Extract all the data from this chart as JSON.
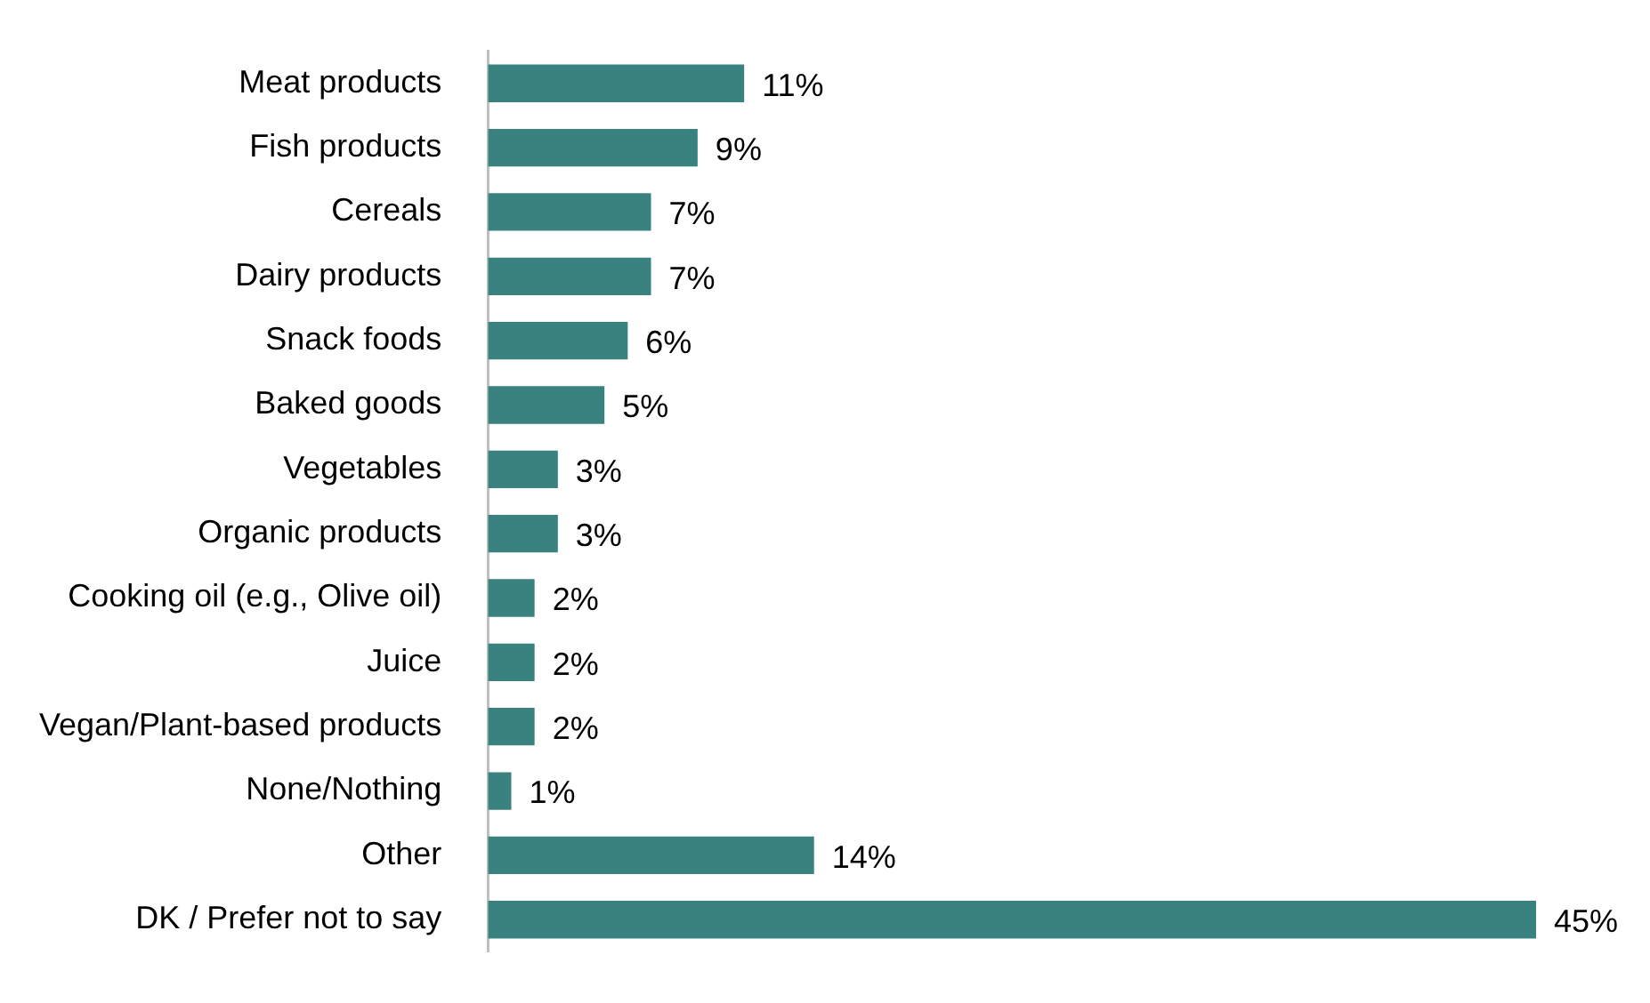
{
  "chart_data": {
    "type": "bar",
    "orientation": "horizontal",
    "categories": [
      "Meat products",
      "Fish products",
      "Cereals",
      "Dairy products",
      "Snack foods",
      "Baked goods",
      "Vegetables",
      "Organic products",
      "Cooking oil (e.g., Olive oil)",
      "Juice",
      "Vegan/Plant-based products",
      "None/Nothing",
      "Other",
      "DK / Prefer not to say"
    ],
    "values": [
      11,
      9,
      7,
      7,
      6,
      5,
      3,
      3,
      2,
      2,
      2,
      1,
      14,
      45
    ],
    "value_labels": [
      "11%",
      "9%",
      "7%",
      "7%",
      "6%",
      "5%",
      "3%",
      "3%",
      "2%",
      "2%",
      "2%",
      "1%",
      "14%",
      "45%"
    ],
    "color": "#3a8280",
    "grid": false,
    "legend": false
  }
}
